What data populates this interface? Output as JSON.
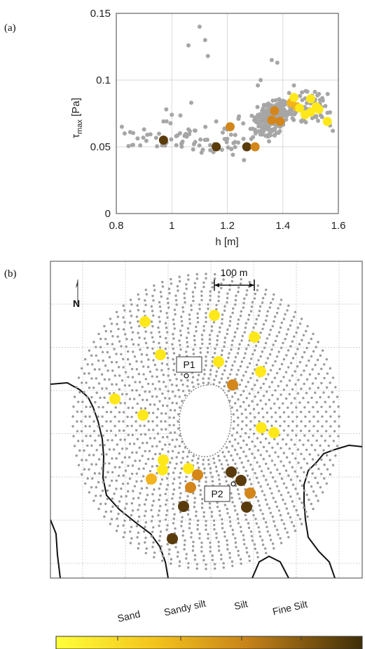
{
  "panel_labels": {
    "a": "(a)",
    "b": "(b)"
  },
  "chart_data": [
    {
      "type": "scatter",
      "panel": "(a)",
      "xlabel": "h [m]",
      "ylabel_main": "τ",
      "ylabel_sub": "max",
      "ylabel_unit": " [Pa]",
      "xlim": [
        0.8,
        1.6
      ],
      "ylim": [
        0,
        0.15
      ],
      "xticks": [
        0.8,
        1,
        1.2,
        1.4,
        1.6
      ],
      "xtick_labels": [
        "0.8",
        "1",
        "1.2",
        "1.4",
        "1.6"
      ],
      "yticks": [
        0,
        0.05,
        0.1,
        0.15
      ],
      "ytick_labels": [
        "0",
        "0.05",
        "0.1",
        "0.15"
      ],
      "grid": true,
      "background_color": "#a6a6a6",
      "series": [
        {
          "values": [
            {
              "x": 1.1,
              "y": 0.14
            },
            {
              "x": 1.06,
              "y": 0.126
            },
            {
              "x": 1.12,
              "y": 0.13
            },
            {
              "x": 1.13,
              "y": 0.118
            },
            {
              "x": 1.36,
              "y": 0.115
            },
            {
              "x": 1.38,
              "y": 0.113
            },
            {
              "x": 1.07,
              "y": 0.083
            },
            {
              "x": 1.0,
              "y": 0.074
            },
            {
              "x": 0.98,
              "y": 0.078
            },
            {
              "x": 0.97,
              "y": 0.069
            },
            {
              "x": 1.32,
              "y": 0.1
            },
            {
              "x": 1.31,
              "y": 0.096
            },
            {
              "x": 0.82,
              "y": 0.065
            },
            {
              "x": 0.85,
              "y": 0.061
            },
            {
              "x": 0.83,
              "y": 0.06
            },
            {
              "x": 0.9,
              "y": 0.063
            },
            {
              "x": 1.06,
              "y": 0.063
            },
            {
              "x": 1.16,
              "y": 0.069
            },
            {
              "x": 1.26,
              "y": 0.04
            },
            {
              "x": 1.22,
              "y": 0.044
            },
            {
              "x": 1.2,
              "y": 0.056
            },
            {
              "x": 1.3,
              "y": 0.072
            },
            {
              "x": 1.44,
              "y": 0.096
            },
            {
              "x": 1.47,
              "y": 0.085
            },
            {
              "x": 1.52,
              "y": 0.073
            },
            {
              "x": 1.57,
              "y": 0.066
            },
            {
              "x": 1.58,
              "y": 0.062
            },
            {
              "x": 1.24,
              "y": 0.071
            },
            {
              "x": 1.33,
              "y": 0.064
            },
            {
              "x": 1.35,
              "y": 0.058
            }
          ],
          "color": "#a6a6a6"
        },
        {
          "values": [
            {
              "x": 0.97,
              "y": 0.055,
              "category": "Fine Silt"
            },
            {
              "x": 1.16,
              "y": 0.05,
              "category": "Fine Silt"
            },
            {
              "x": 1.27,
              "y": 0.05,
              "category": "Fine Silt"
            },
            {
              "x": 1.21,
              "y": 0.065,
              "category": "Silt"
            },
            {
              "x": 1.3,
              "y": 0.05,
              "category": "Silt"
            },
            {
              "x": 1.37,
              "y": 0.077,
              "category": "Silt"
            },
            {
              "x": 1.36,
              "y": 0.07,
              "category": "Silt"
            },
            {
              "x": 1.39,
              "y": 0.069,
              "category": "Silt"
            },
            {
              "x": 1.43,
              "y": 0.083,
              "category": "Sandy silt"
            },
            {
              "x": 1.45,
              "y": 0.08,
              "category": "Sandy silt"
            },
            {
              "x": 1.44,
              "y": 0.087,
              "category": "Sand"
            },
            {
              "x": 1.46,
              "y": 0.079,
              "category": "Sand"
            },
            {
              "x": 1.48,
              "y": 0.074,
              "category": "Sand"
            },
            {
              "x": 1.5,
              "y": 0.086,
              "category": "Sand"
            },
            {
              "x": 1.52,
              "y": 0.08,
              "category": "Sand"
            },
            {
              "x": 1.5,
              "y": 0.076,
              "category": "Sand"
            },
            {
              "x": 1.53,
              "y": 0.078,
              "category": "Sand"
            },
            {
              "x": 1.56,
              "y": 0.069,
              "category": "Sand"
            }
          ]
        }
      ]
    },
    {
      "type": "map",
      "panel": "(b)",
      "scale_bar_label": "100 m",
      "north_label": "N",
      "point_labels": [
        "P1",
        "P2"
      ],
      "samples": [
        {
          "id": 1,
          "category": "Sand"
        },
        {
          "id": 2,
          "category": "Sand"
        },
        {
          "id": 3,
          "category": "Sand"
        },
        {
          "id": 4,
          "category": "Sand"
        },
        {
          "id": 5,
          "category": "Sand"
        },
        {
          "id": 6,
          "category": "Sand"
        },
        {
          "id": 7,
          "category": "Sand"
        },
        {
          "id": 8,
          "category": "Sand"
        },
        {
          "id": 9,
          "category": "Sand"
        },
        {
          "id": 10,
          "category": "Sand"
        },
        {
          "id": 11,
          "category": "Sand"
        },
        {
          "id": 12,
          "category": "Sand"
        },
        {
          "id": 13,
          "category": "Sand"
        },
        {
          "id": 14,
          "category": "Sandy silt"
        },
        {
          "id": 15,
          "category": "Silt"
        },
        {
          "id": 16,
          "category": "Silt"
        },
        {
          "id": 17,
          "category": "Silt"
        },
        {
          "id": 18,
          "category": "Silt"
        },
        {
          "id": 19,
          "category": "Fine Silt"
        },
        {
          "id": 20,
          "category": "Fine Silt"
        },
        {
          "id": 21,
          "category": "Fine Silt"
        },
        {
          "id": 22,
          "category": "Fine Silt"
        },
        {
          "id": 23,
          "category": "Fine Silt"
        }
      ]
    }
  ],
  "colorbar": {
    "categories": [
      "Sand",
      "Sandy silt",
      "Silt",
      "Fine Silt"
    ],
    "colors": [
      "#ffff33",
      "#f2b31c",
      "#c88219",
      "#4a3a0e"
    ],
    "category_colors": {
      "Sand": "#ffe81a",
      "Sandy silt": "#f2b31c",
      "Silt": "#d4861a",
      "Fine Silt": "#5a3b0c"
    }
  }
}
